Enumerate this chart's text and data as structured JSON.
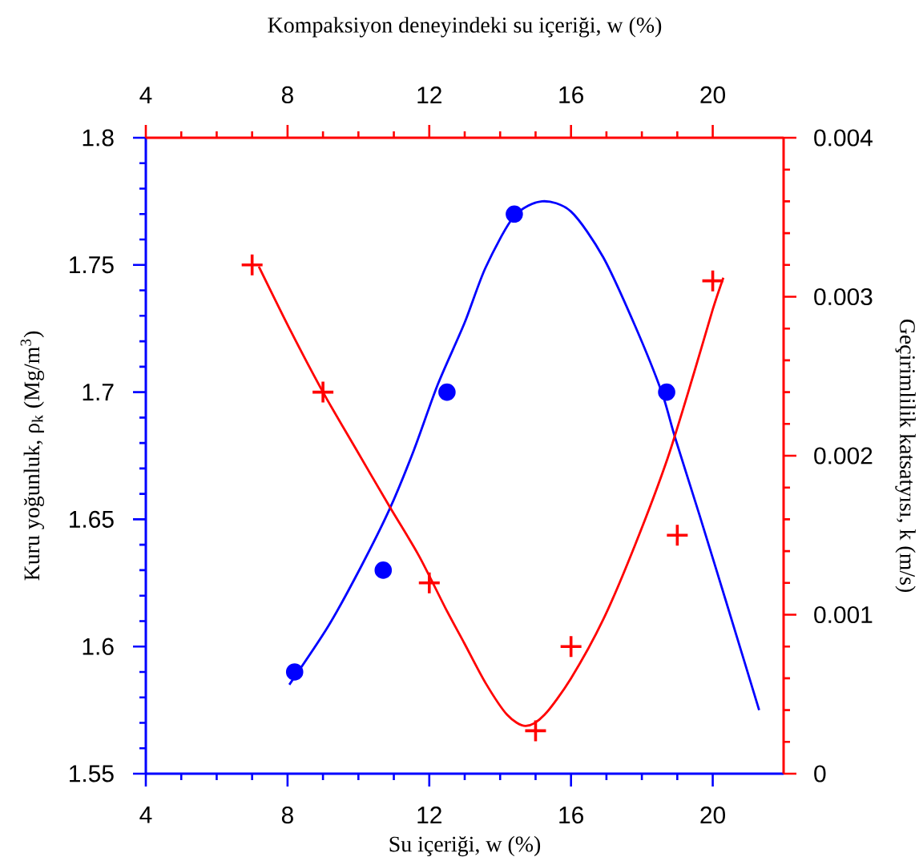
{
  "chart_data": {
    "type": "scatter",
    "xlabel": "Su içeriği, w (%)",
    "ylabel": "Kuru yoğunluk, ρ$_{k}$ (Mg/m$^{3}$)",
    "y2label": "Geçirimlilik katsatyısı, k (m/s)",
    "x2label": "Kompaksiyon deneyindeki su içeriği, w (%)",
    "xlim": [
      4,
      22
    ],
    "xticks": [
      4,
      8,
      12,
      16,
      20
    ],
    "x2lim": [
      4,
      22
    ],
    "x2ticks": [
      4,
      8,
      12,
      16,
      20
    ],
    "ylim": [
      1.55,
      1.8
    ],
    "yticks": [
      1.55,
      1.6,
      1.65,
      1.7,
      1.75,
      1.8
    ],
    "y2lim": [
      0,
      0.004
    ],
    "y2ticks": [
      0,
      0.001,
      0.002,
      0.003,
      0.004
    ],
    "series": [
      {
        "color": "#0000ff",
        "marker": "circle",
        "x": [
          8.2,
          10.7,
          12.5,
          14.4,
          18.7
        ],
        "values": [
          1.59,
          1.63,
          1.7,
          1.77,
          1.7
        ]
      },
      {
        "type": "line",
        "color": "#0000ff",
        "marker": "none",
        "x": [
          8.05,
          9.15,
          10.06,
          10.88,
          11.56,
          12.24,
          12.99,
          13.59,
          14.39,
          15.18,
          16.0,
          16.91,
          17.81,
          18.56,
          18.94,
          19.62,
          20.37,
          21.31
        ],
        "values": [
          1.585,
          1.608,
          1.631,
          1.654,
          1.677,
          1.703,
          1.727,
          1.749,
          1.769,
          1.775,
          1.771,
          1.753,
          1.726,
          1.7,
          1.682,
          1.652,
          1.618,
          1.575
        ]
      },
      {
        "color": "#ff0000",
        "marker": "cross",
        "axis": "y2",
        "x": [
          7,
          9,
          12,
          15,
          16,
          19,
          20
        ],
        "values": [
          0.0032,
          0.0024,
          0.0012,
          0.00027,
          0.0008,
          0.0015,
          0.0031
        ]
      },
      {
        "type": "line",
        "color": "#ff0000",
        "marker": "none",
        "axis": "y2",
        "x": [
          7.19,
          8.1,
          9.0,
          9.91,
          10.88,
          11.71,
          12.46,
          12.99,
          13.59,
          14.2,
          14.72,
          15.25,
          16.0,
          16.91,
          17.81,
          18.72,
          19.47,
          20.0,
          20.3
        ],
        "values": [
          0.00319,
          0.00278,
          0.0024,
          0.00205,
          0.00168,
          0.00137,
          0.00104,
          0.00082,
          0.00057,
          0.00037,
          0.0003,
          0.00037,
          0.0006,
          0.00097,
          0.00144,
          0.00198,
          0.00252,
          0.00292,
          0.00312
        ]
      }
    ]
  }
}
